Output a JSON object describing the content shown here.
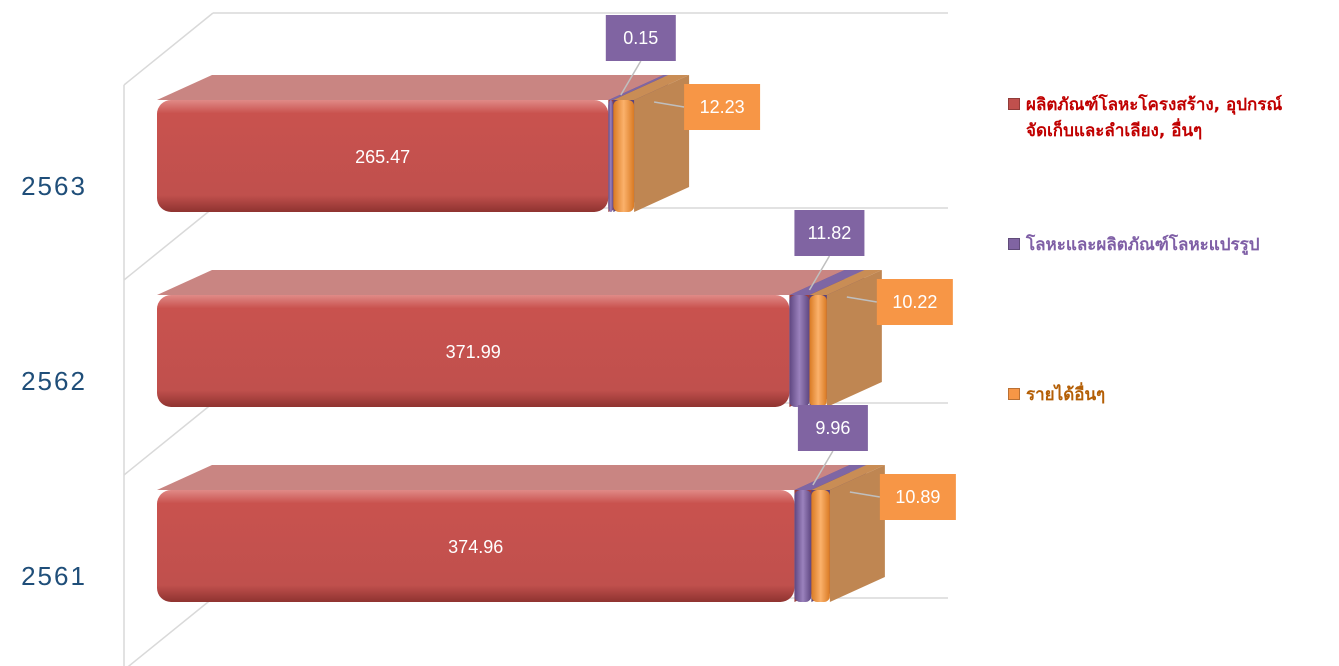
{
  "colors": {
    "metal_products": "#c0504d",
    "metal_processed": "#8064a2",
    "other_income": "#f79646",
    "legend_text_1": "#c00000",
    "legend_text_2": "#7f5fa6",
    "legend_text_3": "#b45f06",
    "year_text": "#1f4e79"
  },
  "legend": {
    "items": [
      {
        "line1": "ผลิตภัณฑ์โลหะโครงสร้าง, อุปกรณ์",
        "line2": "จัดเก็บและลำเลียง, อื่นๆ"
      },
      {
        "line1": "โลหะและผลิตภัณฑ์โลหะแปรรูป",
        "line2": ""
      },
      {
        "line1": "รายได้อื่นๆ",
        "line2": ""
      }
    ]
  },
  "chart_data": {
    "type": "bar",
    "orientation": "horizontal",
    "stacked": true,
    "style": "3d",
    "categories": [
      "2563",
      "2562",
      "2561"
    ],
    "series": [
      {
        "name": "ผลิตภัณฑ์โลหะโครงสร้าง, อุปกรณ์ จัดเก็บและลำเลียง, อื่นๆ",
        "values": [
          265.47,
          371.99,
          374.96
        ]
      },
      {
        "name": "โลหะและผลิตภัณฑ์โลหะแปรรูป",
        "values": [
          0.15,
          11.82,
          9.96
        ]
      },
      {
        "name": "รายได้อื่นๆ",
        "values": [
          12.23,
          10.22,
          10.89
        ]
      }
    ],
    "data_labels": [
      [
        "265.47",
        "0.15",
        "12.23"
      ],
      [
        "371.99",
        "11.82",
        "10.22"
      ],
      [
        "374.96",
        "9.96",
        "10.89"
      ]
    ],
    "legend_position": "right",
    "grid": true
  }
}
